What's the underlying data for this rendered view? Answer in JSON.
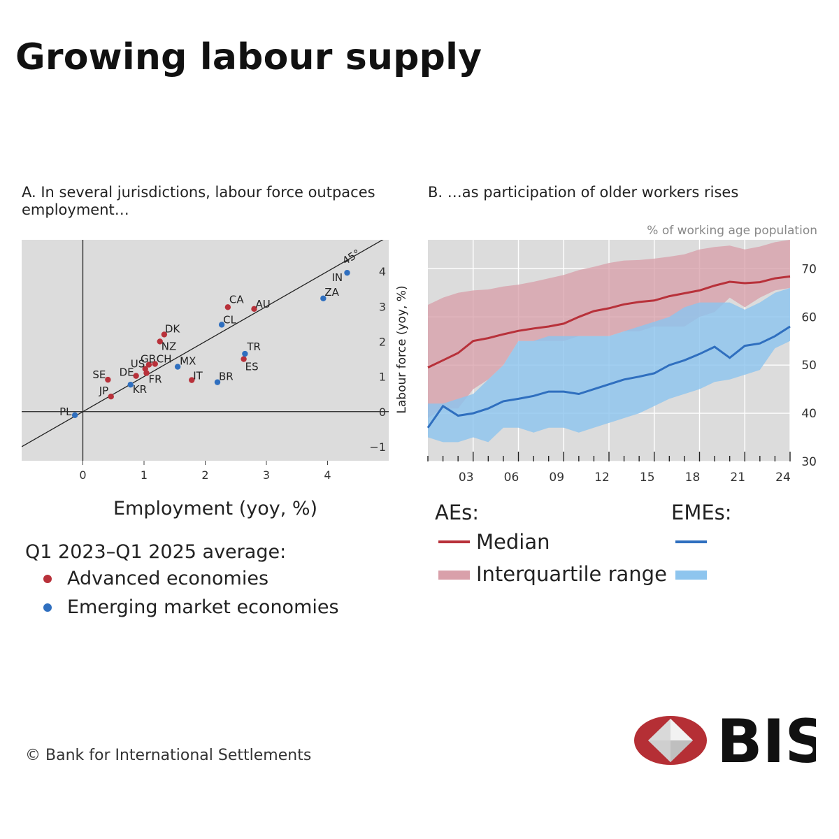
{
  "title": "Growing labour supply",
  "colors": {
    "advanced": "#b8313a",
    "emerging": "#2f6fbf",
    "ae_band": "#d9a0aa",
    "eme_band": "#8ec5ee",
    "plot_bg": "#dcdcdc"
  },
  "panel_a": {
    "title": "A. In several jurisdictions, labour force outpaces employment…",
    "diagonal_label": "45°",
    "legend_heading": "Q1 2023–Q1 2025 average:",
    "legend_advanced": "Advanced economies",
    "legend_emerging": "Emerging market economies"
  },
  "panel_b": {
    "title": "B. …as participation of older workers rises",
    "unit": "% of working age population",
    "legend_aes": "AEs:",
    "legend_emes": "EMEs:",
    "legend_median": "Median",
    "legend_iqr": "Interquartile range"
  },
  "chart_data": [
    {
      "type": "scatter",
      "xlabel": "Employment  (yoy, %)",
      "ylabel": "Labour force (yoy, %)",
      "xlim": [
        -1,
        5
      ],
      "ylim": [
        -1.4,
        4.9
      ],
      "xticks": [
        0,
        1,
        2,
        3,
        4
      ],
      "yticks": [
        -1,
        0,
        1,
        2,
        3,
        4
      ],
      "reference_line": "45-degree line y = x",
      "series": [
        {
          "name": "Advanced economies",
          "points": [
            {
              "label": "CA",
              "x": 2.37,
              "y": 2.98
            },
            {
              "label": "AU",
              "x": 2.8,
              "y": 2.93
            },
            {
              "label": "DK",
              "x": 1.33,
              "y": 2.2
            },
            {
              "label": "NZ",
              "x": 1.26,
              "y": 2.0
            },
            {
              "label": "GB",
              "x": 1.08,
              "y": 1.34
            },
            {
              "label": "CH",
              "x": 1.18,
              "y": 1.36
            },
            {
              "label": "US",
              "x": 1.02,
              "y": 1.22
            },
            {
              "label": "DE",
              "x": 0.87,
              "y": 1.02
            },
            {
              "label": "FR",
              "x": 1.04,
              "y": 1.1
            },
            {
              "label": "IT",
              "x": 1.78,
              "y": 0.9
            },
            {
              "label": "ES",
              "x": 2.63,
              "y": 1.5
            },
            {
              "label": "SE",
              "x": 0.41,
              "y": 0.91
            },
            {
              "label": "JP",
              "x": 0.46,
              "y": 0.43
            }
          ]
        },
        {
          "name": "Emerging market economies",
          "points": [
            {
              "label": "IN",
              "x": 4.32,
              "y": 3.96
            },
            {
              "label": "ZA",
              "x": 3.93,
              "y": 3.23
            },
            {
              "label": "CL",
              "x": 2.27,
              "y": 2.48
            },
            {
              "label": "TR",
              "x": 2.65,
              "y": 1.65
            },
            {
              "label": "MX",
              "x": 1.55,
              "y": 1.28
            },
            {
              "label": "BR",
              "x": 2.2,
              "y": 0.84
            },
            {
              "label": "KR",
              "x": 0.78,
              "y": 0.77
            },
            {
              "label": "PL",
              "x": -0.13,
              "y": -0.1
            }
          ]
        }
      ]
    },
    {
      "type": "line",
      "ylabel": "% of working age population",
      "x_range": [
        2000,
        2024
      ],
      "ylim": [
        30,
        76
      ],
      "yticks": [
        30,
        40,
        50,
        60,
        70
      ],
      "xtick_labels": [
        "03",
        "06",
        "09",
        "12",
        "15",
        "18",
        "21",
        "24"
      ],
      "xtick_years": [
        2003,
        2006,
        2009,
        2012,
        2015,
        2018,
        2021,
        2024
      ],
      "x": [
        2000,
        2001,
        2002,
        2003,
        2004,
        2005,
        2006,
        2007,
        2008,
        2009,
        2010,
        2011,
        2012,
        2013,
        2014,
        2015,
        2016,
        2017,
        2018,
        2019,
        2020,
        2021,
        2022,
        2023,
        2024
      ],
      "series": [
        {
          "name": "AEs median",
          "values": [
            49.5,
            51.0,
            52.5,
            55.0,
            55.6,
            56.4,
            57.1,
            57.6,
            58.0,
            58.6,
            60.0,
            61.2,
            61.8,
            62.6,
            63.1,
            63.4,
            64.3,
            64.9,
            65.5,
            66.5,
            67.3,
            67.0,
            67.2,
            68.0,
            68.4
          ]
        },
        {
          "name": "AEs interquartile range",
          "lower": [
            39.0,
            41.0,
            41.0,
            45.0,
            47.0,
            50.0,
            55.0,
            55.0,
            55.0,
            55.0,
            56.0,
            56.0,
            56.0,
            57.0,
            57.0,
            58.0,
            58.0,
            58.0,
            60.0,
            61.0,
            64.0,
            62.0,
            64.0,
            65.5,
            66.0
          ],
          "upper": [
            62.5,
            64.0,
            65.0,
            65.5,
            65.7,
            66.3,
            66.7,
            67.3,
            68.0,
            68.7,
            69.7,
            70.4,
            71.2,
            71.7,
            71.8,
            72.1,
            72.5,
            73.0,
            74.0,
            74.5,
            74.8,
            74.0,
            74.6,
            75.5,
            76.0
          ]
        },
        {
          "name": "EMEs median",
          "values": [
            37.0,
            41.5,
            39.5,
            40.0,
            41.0,
            42.5,
            43.0,
            43.6,
            44.5,
            44.5,
            44.0,
            45.0,
            46.0,
            47.0,
            47.6,
            48.3,
            50.0,
            51.0,
            52.3,
            53.8,
            51.5,
            54.0,
            54.5,
            56.0,
            58.0
          ]
        },
        {
          "name": "EMEs interquartile range",
          "lower": [
            35.0,
            34.0,
            34.0,
            35.0,
            34.0,
            37.0,
            37.0,
            36.0,
            37.0,
            37.0,
            36.0,
            37.0,
            38.0,
            39.0,
            40.0,
            41.5,
            43.0,
            44.0,
            45.0,
            46.5,
            47.0,
            48.0,
            49.0,
            53.5,
            55.0
          ],
          "upper": [
            42.0,
            42.0,
            43.0,
            44.0,
            47.0,
            50.0,
            55.0,
            55.0,
            56.0,
            56.0,
            56.0,
            56.0,
            56.0,
            57.0,
            58.0,
            59.0,
            60.0,
            62.0,
            63.0,
            63.0,
            63.0,
            61.5,
            63.0,
            65.0,
            66.0
          ]
        }
      ]
    }
  ],
  "footer": {
    "copyright": "© Bank for International Settlements",
    "logo_text": "BIS"
  }
}
